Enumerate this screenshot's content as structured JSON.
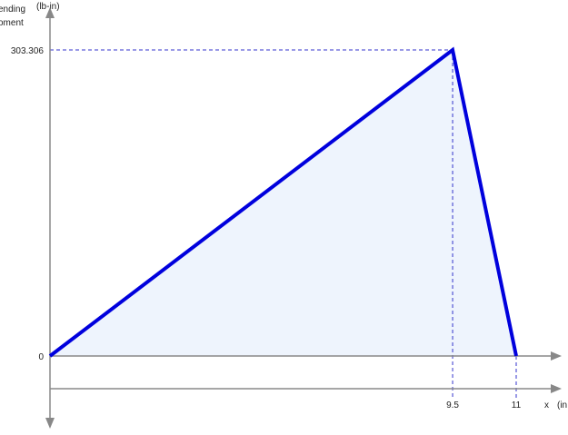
{
  "chart_data": {
    "type": "area",
    "x_unit": "x",
    "x_unit_suffix": "(in",
    "y_label_lines": [
      "ending",
      "oment"
    ],
    "y_unit": "(lb-in)",
    "x": [
      0,
      9.5,
      11
    ],
    "y": [
      0,
      303.306,
      0
    ],
    "x_ticks": [
      "9.5",
      "11"
    ],
    "y_ticks": [
      "0",
      "303.306"
    ],
    "xlim": [
      0,
      11
    ],
    "ylim": [
      0,
      303.306
    ],
    "grid": false,
    "legend": "none",
    "colors": {
      "line": "#0000dd",
      "fill": "#eef4fd",
      "axis": "#888888",
      "guide": "#3333cc"
    }
  }
}
